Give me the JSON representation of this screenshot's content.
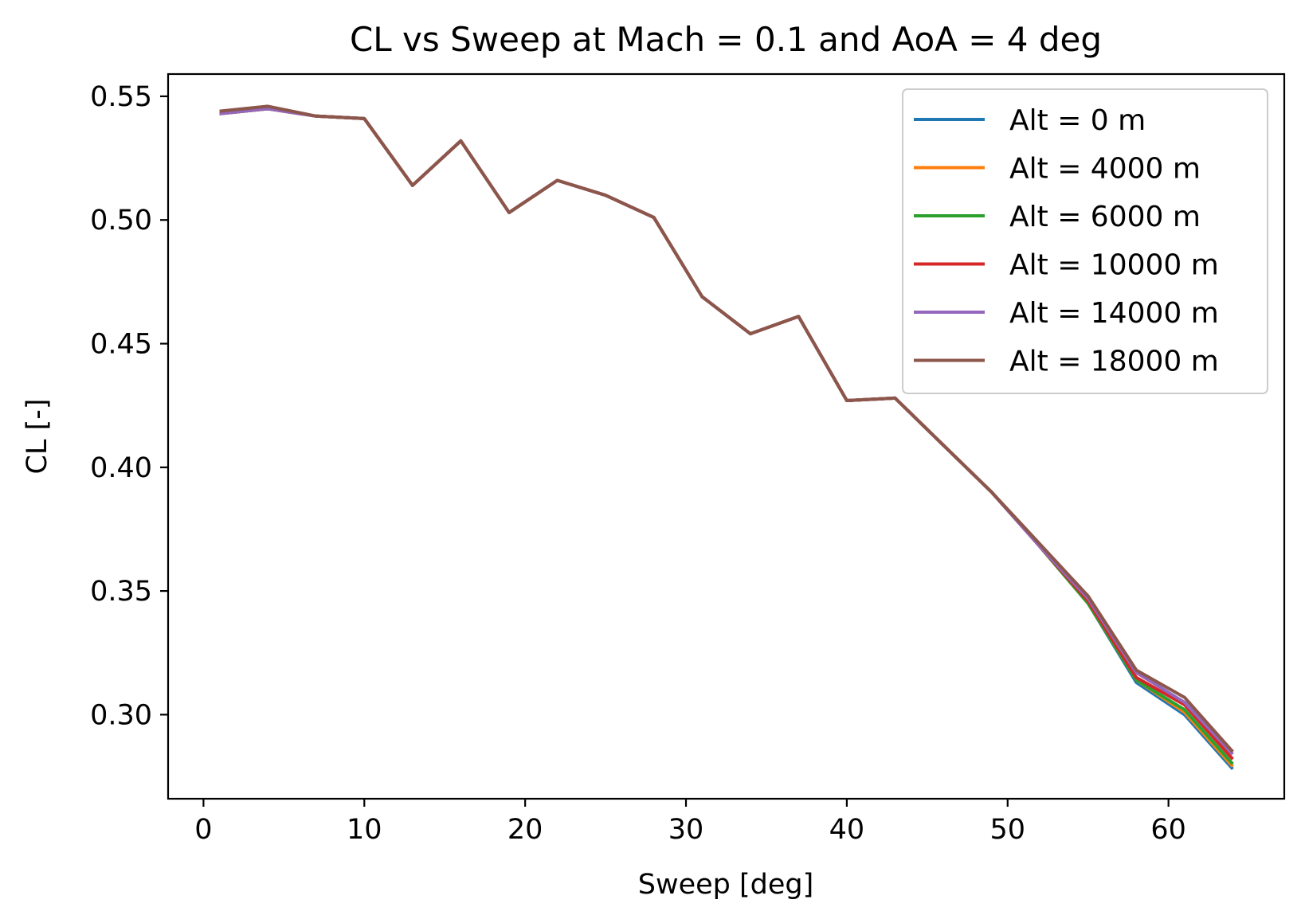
{
  "chart_data": {
    "type": "line",
    "title": "CL vs Sweep at Mach = 0.1 and AoA = 4 deg",
    "xlabel": "Sweep [deg]",
    "ylabel": "CL [-]",
    "xlim": [
      -2.2,
      67.2
    ],
    "ylim": [
      0.266,
      0.559
    ],
    "xticks": [
      0,
      10,
      20,
      30,
      40,
      50,
      60
    ],
    "xtick_labels": [
      "0",
      "10",
      "20",
      "30",
      "40",
      "50",
      "60"
    ],
    "yticks": [
      0.3,
      0.35,
      0.4,
      0.45,
      0.5,
      0.55
    ],
    "ytick_labels": [
      "0.30",
      "0.35",
      "0.40",
      "0.45",
      "0.50",
      "0.55"
    ],
    "grid": false,
    "legend_position": "top-right",
    "x": [
      1,
      4,
      7,
      10,
      13,
      16,
      19,
      22,
      25,
      28,
      31,
      34,
      37,
      40,
      43,
      46,
      49,
      52,
      55,
      58,
      61,
      64
    ],
    "series": [
      {
        "name": "Alt = 0 m",
        "color": "#1f77b4",
        "values": [
          0.543,
          0.545,
          0.542,
          0.541,
          0.514,
          0.532,
          0.503,
          0.516,
          0.51,
          0.501,
          0.469,
          0.454,
          0.461,
          0.427,
          0.428,
          0.409,
          0.39,
          0.368,
          0.345,
          0.313,
          0.3,
          0.278
        ]
      },
      {
        "name": "Alt = 4000 m",
        "color": "#ff7f0e",
        "values": [
          0.543,
          0.545,
          0.542,
          0.541,
          0.514,
          0.532,
          0.503,
          0.516,
          0.51,
          0.501,
          0.469,
          0.454,
          0.461,
          0.427,
          0.428,
          0.409,
          0.39,
          0.368,
          0.345,
          0.314,
          0.301,
          0.279
        ]
      },
      {
        "name": "Alt = 6000 m",
        "color": "#2ca02c",
        "values": [
          0.543,
          0.545,
          0.542,
          0.541,
          0.514,
          0.532,
          0.503,
          0.516,
          0.51,
          0.501,
          0.469,
          0.454,
          0.461,
          0.427,
          0.428,
          0.409,
          0.39,
          0.368,
          0.345,
          0.314,
          0.302,
          0.28
        ]
      },
      {
        "name": "Alt = 10000 m",
        "color": "#d62728",
        "values": [
          0.543,
          0.545,
          0.542,
          0.541,
          0.514,
          0.532,
          0.503,
          0.516,
          0.51,
          0.501,
          0.469,
          0.454,
          0.461,
          0.427,
          0.428,
          0.409,
          0.39,
          0.368,
          0.346,
          0.315,
          0.304,
          0.282
        ]
      },
      {
        "name": "Alt = 14000 m",
        "color": "#9467bd",
        "values": [
          0.543,
          0.545,
          0.542,
          0.541,
          0.514,
          0.532,
          0.503,
          0.516,
          0.51,
          0.501,
          0.469,
          0.454,
          0.461,
          0.427,
          0.428,
          0.409,
          0.39,
          0.368,
          0.347,
          0.317,
          0.305,
          0.284
        ]
      },
      {
        "name": "Alt = 18000 m",
        "color": "#8c564b",
        "values": [
          0.544,
          0.546,
          0.542,
          0.541,
          0.514,
          0.532,
          0.503,
          0.516,
          0.51,
          0.501,
          0.469,
          0.454,
          0.461,
          0.427,
          0.428,
          0.409,
          0.39,
          0.369,
          0.348,
          0.318,
          0.307,
          0.285
        ]
      }
    ]
  }
}
